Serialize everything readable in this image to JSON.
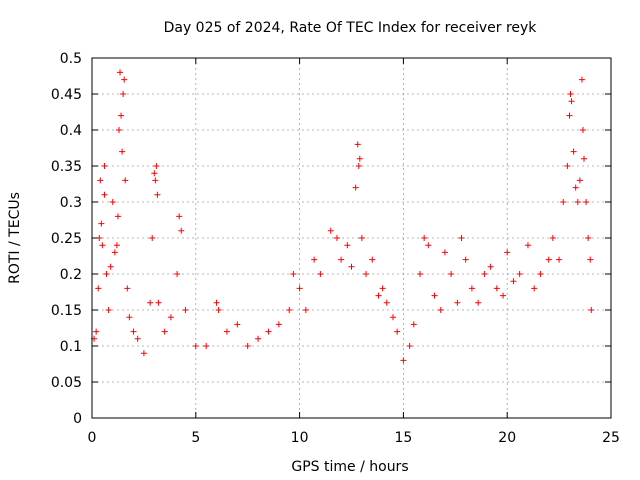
{
  "chart_data": {
    "type": "scatter",
    "title": "Day 025 of 2024, Rate Of TEC Index for receiver reyk",
    "xlabel": "GPS time / hours",
    "ylabel": "ROTI / TECUs",
    "xlim": [
      0,
      25
    ],
    "ylim": [
      0,
      0.5
    ],
    "xticks": [
      "0",
      "5",
      "10",
      "15",
      "20",
      "25"
    ],
    "yticks": [
      "0",
      "0.05",
      "0.1",
      "0.15",
      "0.2",
      "0.25",
      "0.3",
      "0.35",
      "0.4",
      "0.45",
      "0.5"
    ],
    "grid": true,
    "marker": "+",
    "color": "#ff0000",
    "series": [
      {
        "name": "ROTI",
        "points": [
          [
            0.1,
            0.11
          ],
          [
            0.2,
            0.12
          ],
          [
            0.3,
            0.18
          ],
          [
            0.35,
            0.25
          ],
          [
            0.4,
            0.33
          ],
          [
            0.45,
            0.27
          ],
          [
            0.5,
            0.24
          ],
          [
            0.6,
            0.31
          ],
          [
            0.6,
            0.35
          ],
          [
            0.7,
            0.2
          ],
          [
            0.8,
            0.15
          ],
          [
            0.9,
            0.21
          ],
          [
            1.0,
            0.3
          ],
          [
            1.1,
            0.23
          ],
          [
            1.2,
            0.24
          ],
          [
            1.25,
            0.28
          ],
          [
            1.3,
            0.4
          ],
          [
            1.35,
            0.48
          ],
          [
            1.4,
            0.42
          ],
          [
            1.45,
            0.37
          ],
          [
            1.5,
            0.45
          ],
          [
            1.55,
            0.47
          ],
          [
            1.6,
            0.33
          ],
          [
            1.7,
            0.18
          ],
          [
            1.8,
            0.14
          ],
          [
            2.0,
            0.12
          ],
          [
            2.2,
            0.11
          ],
          [
            2.5,
            0.09
          ],
          [
            2.8,
            0.16
          ],
          [
            2.9,
            0.25
          ],
          [
            3.0,
            0.34
          ],
          [
            3.05,
            0.33
          ],
          [
            3.1,
            0.35
          ],
          [
            3.15,
            0.31
          ],
          [
            3.2,
            0.16
          ],
          [
            3.5,
            0.12
          ],
          [
            3.8,
            0.14
          ],
          [
            4.1,
            0.2
          ],
          [
            4.2,
            0.28
          ],
          [
            4.3,
            0.26
          ],
          [
            4.5,
            0.15
          ],
          [
            5.0,
            0.1
          ],
          [
            5.5,
            0.1
          ],
          [
            6.0,
            0.16
          ],
          [
            6.1,
            0.15
          ],
          [
            6.5,
            0.12
          ],
          [
            7.0,
            0.13
          ],
          [
            7.5,
            0.1
          ],
          [
            8.0,
            0.11
          ],
          [
            8.5,
            0.12
          ],
          [
            9.0,
            0.13
          ],
          [
            9.5,
            0.15
          ],
          [
            9.7,
            0.2
          ],
          [
            10.0,
            0.18
          ],
          [
            10.3,
            0.15
          ],
          [
            10.7,
            0.22
          ],
          [
            11.0,
            0.2
          ],
          [
            11.5,
            0.26
          ],
          [
            11.8,
            0.25
          ],
          [
            12.0,
            0.22
          ],
          [
            12.3,
            0.24
          ],
          [
            12.5,
            0.21
          ],
          [
            12.7,
            0.32
          ],
          [
            12.8,
            0.38
          ],
          [
            12.85,
            0.35
          ],
          [
            12.9,
            0.36
          ],
          [
            13.0,
            0.25
          ],
          [
            13.2,
            0.2
          ],
          [
            13.5,
            0.22
          ],
          [
            13.8,
            0.17
          ],
          [
            14.0,
            0.18
          ],
          [
            14.2,
            0.16
          ],
          [
            14.5,
            0.14
          ],
          [
            14.7,
            0.12
          ],
          [
            15.0,
            0.08
          ],
          [
            15.3,
            0.1
          ],
          [
            15.5,
            0.13
          ],
          [
            15.8,
            0.2
          ],
          [
            16.0,
            0.25
          ],
          [
            16.2,
            0.24
          ],
          [
            16.5,
            0.17
          ],
          [
            16.8,
            0.15
          ],
          [
            17.0,
            0.23
          ],
          [
            17.3,
            0.2
          ],
          [
            17.6,
            0.16
          ],
          [
            17.8,
            0.25
          ],
          [
            18.0,
            0.22
          ],
          [
            18.3,
            0.18
          ],
          [
            18.6,
            0.16
          ],
          [
            18.9,
            0.2
          ],
          [
            19.2,
            0.21
          ],
          [
            19.5,
            0.18
          ],
          [
            19.8,
            0.17
          ],
          [
            20.0,
            0.23
          ],
          [
            20.3,
            0.19
          ],
          [
            20.6,
            0.2
          ],
          [
            21.0,
            0.24
          ],
          [
            21.3,
            0.18
          ],
          [
            21.6,
            0.2
          ],
          [
            22.0,
            0.22
          ],
          [
            22.2,
            0.25
          ],
          [
            22.5,
            0.22
          ],
          [
            22.7,
            0.3
          ],
          [
            22.9,
            0.35
          ],
          [
            23.0,
            0.42
          ],
          [
            23.05,
            0.45
          ],
          [
            23.1,
            0.44
          ],
          [
            23.2,
            0.37
          ],
          [
            23.3,
            0.32
          ],
          [
            23.4,
            0.3
          ],
          [
            23.5,
            0.33
          ],
          [
            23.6,
            0.47
          ],
          [
            23.65,
            0.4
          ],
          [
            23.7,
            0.36
          ],
          [
            23.8,
            0.3
          ],
          [
            23.9,
            0.25
          ],
          [
            24.0,
            0.22
          ],
          [
            24.05,
            0.15
          ]
        ]
      }
    ]
  }
}
